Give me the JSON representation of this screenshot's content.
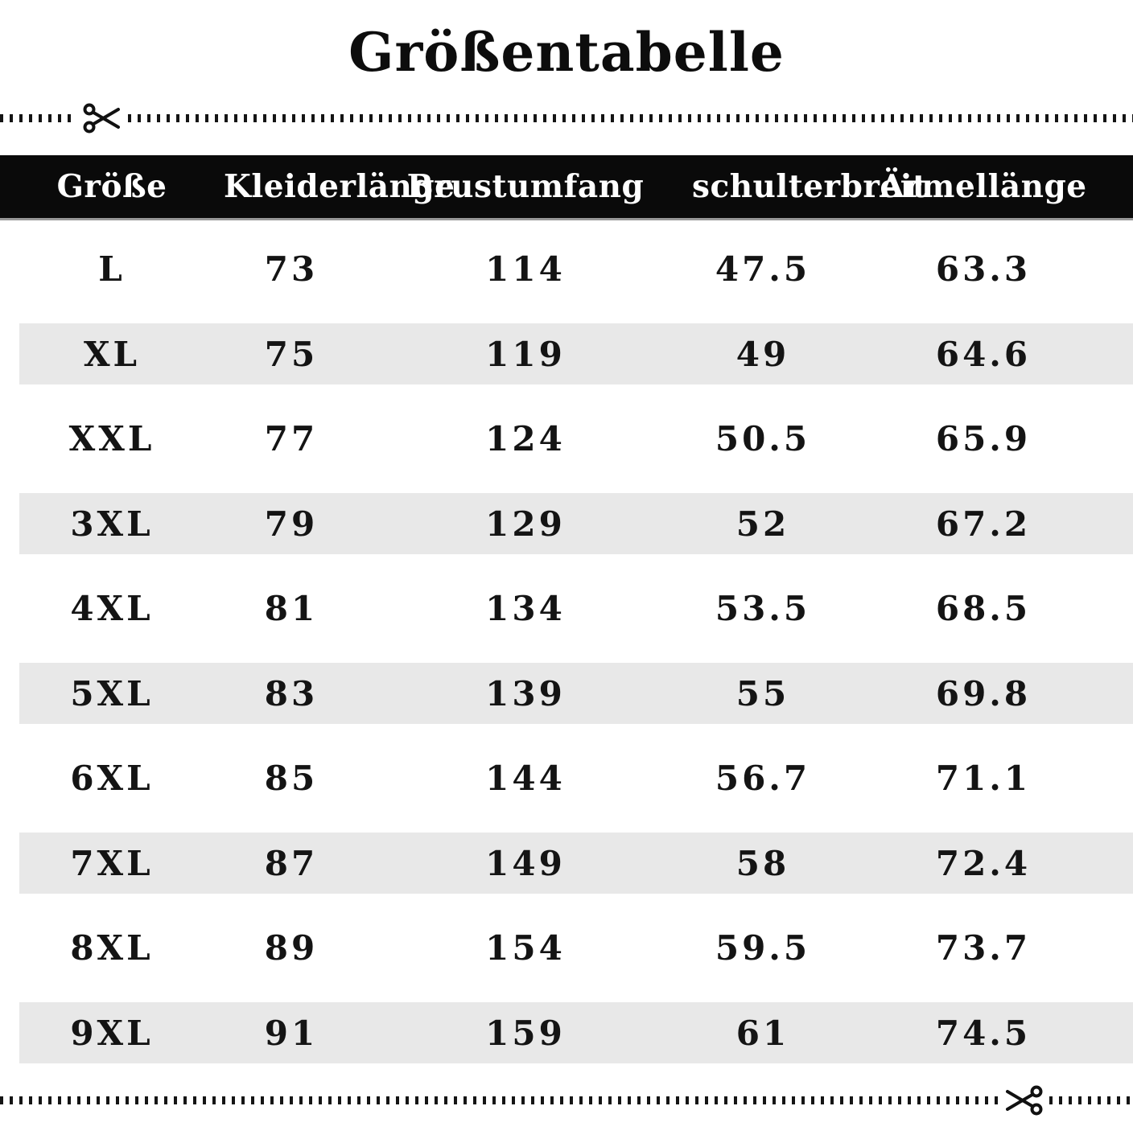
{
  "title": "Größentabelle",
  "chart_data": {
    "type": "table",
    "title": "Größentabelle",
    "columns": [
      "Größe",
      "Kleiderlänge",
      "Brustumfang",
      "schulterbreit",
      "Ärmellänge"
    ],
    "rows": [
      [
        "L",
        "73",
        "114",
        "47.5",
        "63.3"
      ],
      [
        "XL",
        "75",
        "119",
        "49",
        "64.6"
      ],
      [
        "XXL",
        "77",
        "124",
        "50.5",
        "65.9"
      ],
      [
        "3XL",
        "79",
        "129",
        "52",
        "67.2"
      ],
      [
        "4XL",
        "81",
        "134",
        "53.5",
        "68.5"
      ],
      [
        "5XL",
        "83",
        "139",
        "55",
        "69.8"
      ],
      [
        "6XL",
        "85",
        "144",
        "56.7",
        "71.1"
      ],
      [
        "7XL",
        "87",
        "149",
        "58",
        "72.4"
      ],
      [
        "8XL",
        "89",
        "154",
        "59.5",
        "73.7"
      ],
      [
        "9XL",
        "91",
        "159",
        "61",
        "74.5"
      ]
    ],
    "layout": {
      "striped_rows": "every second row shaded",
      "header_style": "white text on black bar",
      "grid": "off"
    }
  },
  "icons": {
    "top_scissors": "scissors-icon pointing right on dotted cut line",
    "bottom_scissors": "scissors-icon pointing left on dotted cut line"
  },
  "colors": {
    "header_bg": "#0a0a0a",
    "header_text": "#ffffff",
    "row_stripe": "#e8e8e8",
    "text": "#141414",
    "dotted_line": "#141414"
  }
}
